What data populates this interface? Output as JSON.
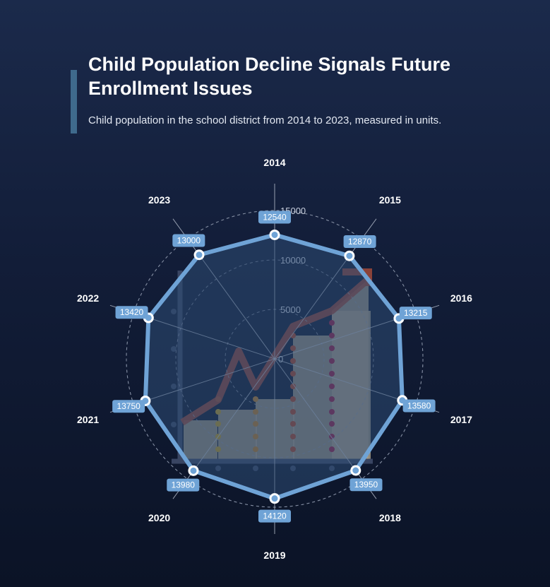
{
  "header": {
    "title": "Child Population Decline Signals Future Enrollment Issues",
    "subtitle": "Child population in the school district from 2014 to 2023, measured in units."
  },
  "colors": {
    "series_stroke": "#6fa3d6",
    "series_fill": "#2e4c75",
    "label_box": "#6fa3d6",
    "grid": "#8a93a8",
    "spoke": "#b7bfcd",
    "decor_line": "#a64b3a",
    "decor_bars": "#b9ab93",
    "decor_axes": "#3e4a68"
  },
  "chart_data": {
    "type": "radar",
    "title": "Child Population Decline Signals Future Enrollment Issues",
    "subtitle": "Child population in the school district from 2014 to 2023, measured in units.",
    "categories": [
      "2014",
      "2015",
      "2016",
      "2017",
      "2018",
      "2019",
      "2020",
      "2021",
      "2022",
      "2023"
    ],
    "values": [
      12540,
      12870,
      13215,
      13580,
      13950,
      14120,
      13980,
      13750,
      13420,
      13000
    ],
    "value_labels": [
      "12540",
      "12870",
      "13215",
      "13580",
      "13950",
      "14120",
      "13980",
      "13750",
      "13420",
      "13000"
    ],
    "radial_ticks": [
      0,
      5000,
      10000,
      15000
    ],
    "radial_tick_labels": [
      "0",
      "5000",
      "10000",
      "15000"
    ],
    "rmax": 15000,
    "grid": true,
    "legend": "none"
  }
}
